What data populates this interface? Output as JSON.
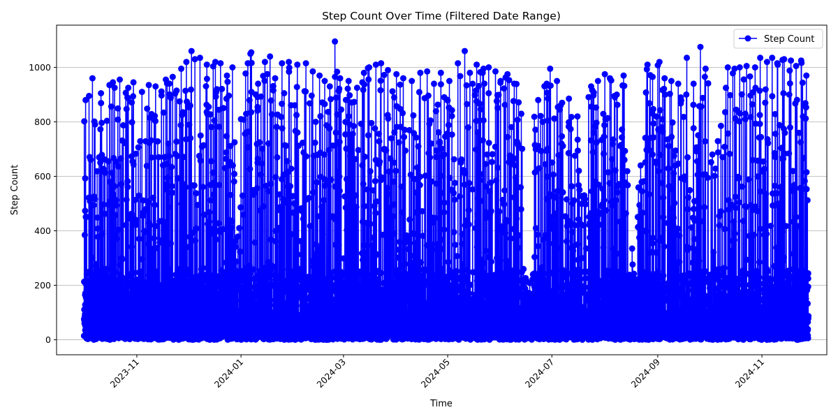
{
  "chart_data": {
    "type": "line",
    "title": "Step Count Over Time (Filtered Date Range)",
    "xlabel": "Time",
    "ylabel": "Step Count",
    "x_range": [
      "2023-09-15",
      "2024-12-09"
    ],
    "ylim": [
      -55,
      1155
    ],
    "x_ticks": [
      {
        "date": "2023-11-01",
        "label": "2023-11"
      },
      {
        "date": "2024-01-01",
        "label": "2024-01"
      },
      {
        "date": "2024-03-01",
        "label": "2024-03"
      },
      {
        "date": "2024-05-01",
        "label": "2024-05"
      },
      {
        "date": "2024-07-01",
        "label": "2024-07"
      },
      {
        "date": "2024-09-01",
        "label": "2024-09"
      },
      {
        "date": "2024-11-01",
        "label": "2024-11"
      }
    ],
    "y_ticks": [
      0,
      200,
      400,
      600,
      800,
      1000
    ],
    "grid": "horizontal",
    "legend_position": "top-right",
    "series": [
      {
        "name": "Step Count",
        "color": "#0000ff",
        "marker": "circle",
        "date_range": [
          "2023-10-01",
          "2024-11-28"
        ],
        "peaks": [
          [
            "2023-10-02",
            880
          ],
          [
            "2023-10-04",
            895
          ],
          [
            "2023-10-06",
            960
          ],
          [
            "2023-10-11",
            905
          ],
          [
            "2023-10-16",
            935
          ],
          [
            "2023-10-18",
            945
          ],
          [
            "2023-10-22",
            955
          ],
          [
            "2023-10-27",
            925
          ],
          [
            "2023-10-30",
            945
          ],
          [
            "2023-11-04",
            910
          ],
          [
            "2023-11-08",
            935
          ],
          [
            "2023-11-12",
            930
          ],
          [
            "2023-11-18",
            955
          ],
          [
            "2023-11-22",
            965
          ],
          [
            "2023-11-27",
            995
          ],
          [
            "2023-11-30",
            1020
          ],
          [
            "2023-12-03",
            1060
          ],
          [
            "2023-12-05",
            1030
          ],
          [
            "2023-12-08",
            1035
          ],
          [
            "2023-12-12",
            1010
          ],
          [
            "2023-12-17",
            1020
          ],
          [
            "2023-12-20",
            1015
          ],
          [
            "2023-12-27",
            1000
          ],
          [
            "2024-01-01",
            810
          ],
          [
            "2024-01-05",
            1015
          ],
          [
            "2024-01-07",
            1055
          ],
          [
            "2024-01-11",
            940
          ],
          [
            "2024-01-15",
            1020
          ],
          [
            "2024-01-18",
            1040
          ],
          [
            "2024-01-21",
            960
          ],
          [
            "2024-01-25",
            1015
          ],
          [
            "2024-01-29",
            1020
          ],
          [
            "2024-02-03",
            1010
          ],
          [
            "2024-02-08",
            1015
          ],
          [
            "2024-02-12",
            985
          ],
          [
            "2024-02-16",
            970
          ],
          [
            "2024-02-19",
            950
          ],
          [
            "2024-02-22",
            930
          ],
          [
            "2024-02-25",
            1095
          ],
          [
            "2024-02-28",
            960
          ],
          [
            "2024-03-04",
            950
          ],
          [
            "2024-03-09",
            925
          ],
          [
            "2024-03-13",
            980
          ],
          [
            "2024-03-16",
            1000
          ],
          [
            "2024-03-20",
            1010
          ],
          [
            "2024-03-23",
            1015
          ],
          [
            "2024-03-27",
            990
          ],
          [
            "2024-04-01",
            975
          ],
          [
            "2024-04-05",
            960
          ],
          [
            "2024-04-10",
            950
          ],
          [
            "2024-04-15",
            980
          ],
          [
            "2024-04-19",
            985
          ],
          [
            "2024-04-23",
            940
          ],
          [
            "2024-04-27",
            980
          ],
          [
            "2024-05-02",
            950
          ],
          [
            "2024-05-07",
            1015
          ],
          [
            "2024-05-11",
            1060
          ],
          [
            "2024-05-14",
            980
          ],
          [
            "2024-05-18",
            1010
          ],
          [
            "2024-05-22",
            995
          ],
          [
            "2024-05-25",
            1000
          ],
          [
            "2024-05-29",
            985
          ],
          [
            "2024-06-01",
            950
          ],
          [
            "2024-06-05",
            975
          ],
          [
            "2024-06-09",
            940
          ],
          [
            "2024-06-18",
            170
          ],
          [
            "2024-06-23",
            880
          ],
          [
            "2024-06-28",
            940
          ],
          [
            "2024-06-30",
            995
          ],
          [
            "2024-07-04",
            950
          ],
          [
            "2024-07-07",
            870
          ],
          [
            "2024-07-11",
            885
          ],
          [
            "2024-07-16",
            820
          ],
          [
            "2024-07-20",
            530
          ],
          [
            "2024-07-24",
            930
          ],
          [
            "2024-07-28",
            950
          ],
          [
            "2024-08-01",
            975
          ],
          [
            "2024-08-04",
            960
          ],
          [
            "2024-08-08",
            900
          ],
          [
            "2024-08-12",
            970
          ],
          [
            "2024-08-17",
            335
          ],
          [
            "2024-08-22",
            640
          ],
          [
            "2024-08-26",
            1010
          ],
          [
            "2024-08-29",
            965
          ],
          [
            "2024-09-02",
            1020
          ],
          [
            "2024-09-05",
            960
          ],
          [
            "2024-09-09",
            950
          ],
          [
            "2024-09-13",
            940
          ],
          [
            "2024-09-18",
            1035
          ],
          [
            "2024-09-22",
            940
          ],
          [
            "2024-09-26",
            1075
          ],
          [
            "2024-09-29",
            995
          ],
          [
            "2024-10-03",
            680
          ],
          [
            "2024-10-08",
            785
          ],
          [
            "2024-10-12",
            1000
          ],
          [
            "2024-10-16",
            995
          ],
          [
            "2024-10-19",
            1000
          ],
          [
            "2024-10-23",
            1005
          ],
          [
            "2024-10-28",
            1000
          ],
          [
            "2024-10-31",
            1035
          ],
          [
            "2024-11-04",
            1020
          ],
          [
            "2024-11-07",
            1035
          ],
          [
            "2024-11-10",
            1015
          ],
          [
            "2024-11-14",
            1030
          ],
          [
            "2024-11-18",
            1025
          ],
          [
            "2024-11-21",
            1005
          ],
          [
            "2024-11-24",
            1025
          ],
          [
            "2024-11-27",
            970
          ]
        ]
      }
    ]
  }
}
